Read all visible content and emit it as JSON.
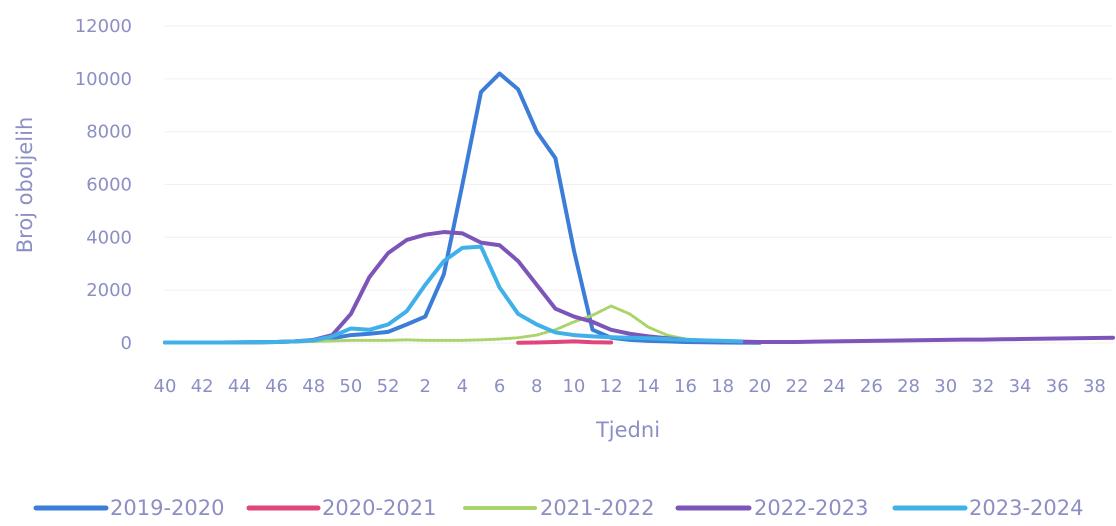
{
  "chart_data": {
    "type": "line",
    "xlabel": "Tjedni",
    "ylabel": "Broj oboljelih",
    "ylim": [
      0,
      12000
    ],
    "yticks": [
      0,
      2000,
      4000,
      6000,
      8000,
      10000,
      12000
    ],
    "x": [
      "40",
      "41",
      "42",
      "43",
      "44",
      "45",
      "46",
      "47",
      "48",
      "49",
      "50",
      "51",
      "52",
      "1",
      "2",
      "3",
      "4",
      "5",
      "6",
      "7",
      "8",
      "9",
      "10",
      "11",
      "12",
      "13",
      "14",
      "15",
      "16",
      "17",
      "18",
      "19",
      "20",
      "21",
      "22",
      "23",
      "24",
      "25",
      "26",
      "27",
      "28",
      "29",
      "30",
      "31",
      "32",
      "33",
      "34",
      "35",
      "36",
      "37",
      "38",
      "39"
    ],
    "x_tick_labels": [
      "40",
      "42",
      "44",
      "46",
      "48",
      "50",
      "52",
      "2",
      "4",
      "6",
      "8",
      "10",
      "12",
      "14",
      "16",
      "18",
      "20",
      "22",
      "24",
      "26",
      "28",
      "30",
      "32",
      "34",
      "36",
      "38"
    ],
    "legend_position": "bottom",
    "series": [
      {
        "name": "2019-2020",
        "color": "#3b7dd8",
        "values": [
          20,
          20,
          20,
          20,
          25,
          30,
          40,
          60,
          90,
          180,
          300,
          350,
          420,
          700,
          1000,
          2600,
          6000,
          9500,
          10200,
          9600,
          8000,
          7000,
          3500,
          500,
          200,
          120,
          80,
          60,
          40,
          30,
          20,
          15,
          10,
          null,
          null,
          null,
          null,
          null,
          null,
          null,
          null,
          null,
          null,
          null,
          null,
          null,
          null,
          null,
          null,
          null,
          null,
          null
        ]
      },
      {
        "name": "2020-2021",
        "color": "#e0457b",
        "values": [
          null,
          null,
          null,
          null,
          null,
          null,
          null,
          null,
          null,
          null,
          null,
          null,
          null,
          null,
          null,
          null,
          null,
          null,
          null,
          10,
          20,
          40,
          60,
          30,
          20,
          null,
          null,
          null,
          null,
          null,
          null,
          null,
          null,
          null,
          null,
          null,
          null,
          null,
          null,
          null,
          null,
          null,
          null,
          null,
          null,
          null,
          null,
          null,
          null,
          null,
          null,
          null
        ]
      },
      {
        "name": "2021-2022",
        "color": "#a9d46a",
        "dashed": true,
        "values": [
          10,
          10,
          10,
          15,
          15,
          20,
          30,
          40,
          60,
          80,
          100,
          100,
          100,
          120,
          100,
          100,
          100,
          120,
          150,
          200,
          300,
          500,
          800,
          1050,
          1400,
          1100,
          600,
          300,
          150,
          100,
          60,
          40,
          30,
          20,
          null,
          null,
          null,
          null,
          null,
          null,
          null,
          null,
          null,
          null,
          null,
          null,
          null,
          null,
          null,
          null,
          null,
          null
        ]
      },
      {
        "name": "2022-2023",
        "color": "#7d55b8",
        "values": [
          20,
          20,
          20,
          20,
          25,
          30,
          40,
          60,
          120,
          300,
          1100,
          2500,
          3400,
          3900,
          4100,
          4200,
          4150,
          3800,
          3700,
          3100,
          2200,
          1300,
          1000,
          800,
          500,
          350,
          250,
          180,
          120,
          80,
          60,
          50,
          40,
          40,
          40,
          50,
          60,
          70,
          80,
          90,
          100,
          110,
          120,
          130,
          130,
          140,
          150,
          160,
          170,
          180,
          190,
          200
        ]
      },
      {
        "name": "2023-2024",
        "color": "#3fb0e8",
        "values": [
          20,
          20,
          20,
          20,
          20,
          30,
          40,
          60,
          100,
          250,
          550,
          500,
          700,
          1200,
          2200,
          3100,
          3600,
          3650,
          2100,
          1100,
          700,
          400,
          300,
          250,
          220,
          200,
          180,
          150,
          120,
          100,
          80,
          60,
          null,
          null,
          null,
          null,
          null,
          null,
          null,
          null,
          null,
          null,
          null,
          null,
          null,
          null,
          null,
          null,
          null,
          null,
          null,
          null
        ]
      }
    ]
  }
}
